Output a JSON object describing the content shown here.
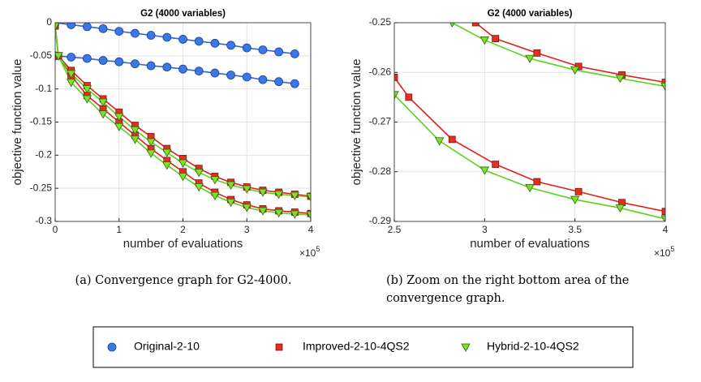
{
  "chart_data": [
    {
      "type": "line",
      "title": "G2 (4000 variables)",
      "x_label": "number of evaluations",
      "y_label": "objective function value",
      "x_multiplier": "×10",
      "x_exponent": "5",
      "caption": [
        "(a) Convergence graph for G2-4000."
      ],
      "xlim": [
        0,
        4
      ],
      "ylim": [
        -0.3,
        0
      ],
      "xticks": [
        0,
        1,
        2,
        3,
        4
      ],
      "yticks": [
        0,
        -0.05,
        -0.1,
        -0.15,
        -0.2,
        -0.25,
        -0.3
      ],
      "grid": true,
      "series": [
        {
          "name": "Original-2-10",
          "color": "#2f64d8",
          "marker": "circle",
          "marker_color": "#3a78e8",
          "x": [
            0,
            0.25,
            0.5,
            0.75,
            1,
            1.25,
            1.5,
            1.75,
            2,
            2.25,
            2.5,
            2.75,
            3,
            3.25,
            3.5,
            3.75
          ],
          "values": [
            0,
            -0.003,
            -0.006,
            -0.009,
            -0.013,
            -0.016,
            -0.019,
            -0.022,
            -0.025,
            -0.028,
            -0.031,
            -0.034,
            -0.038,
            -0.041,
            -0.044,
            -0.047
          ]
        },
        {
          "color": "#2f64d8",
          "marker": "circle",
          "marker_color": "#3a78e8",
          "x": [
            0,
            0.25,
            0.5,
            0.75,
            1,
            1.25,
            1.5,
            1.75,
            2,
            2.25,
            2.5,
            2.75,
            3,
            3.25,
            3.5,
            3.75
          ],
          "values": [
            -0.05,
            -0.052,
            -0.054,
            -0.057,
            -0.059,
            -0.062,
            -0.065,
            -0.067,
            -0.07,
            -0.073,
            -0.076,
            -0.079,
            -0.082,
            -0.086,
            -0.089,
            -0.092
          ]
        },
        {
          "name": "Improved-2-10-4QS2",
          "color": "#e01e1e",
          "marker": "square",
          "marker_color": "#e0301e",
          "x": [
            0,
            0.05,
            0.25,
            0.5,
            0.75,
            1,
            1.25,
            1.5,
            1.75,
            2,
            2.25,
            2.5,
            2.75,
            3,
            3.25,
            3.5,
            3.75,
            4
          ],
          "values": [
            -0.005,
            -0.05,
            -0.072,
            -0.095,
            -0.115,
            -0.135,
            -0.155,
            -0.172,
            -0.19,
            -0.205,
            -0.22,
            -0.232,
            -0.241,
            -0.248,
            -0.253,
            -0.256,
            -0.259,
            -0.262
          ]
        },
        {
          "color": "#e01e1e",
          "marker": "square",
          "marker_color": "#e0301e",
          "x": [
            0,
            0.05,
            0.25,
            0.5,
            0.75,
            1,
            1.25,
            1.5,
            1.75,
            2,
            2.25,
            2.5,
            2.75,
            3,
            3.25,
            3.5,
            3.75,
            4
          ],
          "values": [
            -0.005,
            -0.05,
            -0.08,
            -0.11,
            -0.13,
            -0.15,
            -0.17,
            -0.19,
            -0.208,
            -0.225,
            -0.242,
            -0.256,
            -0.267,
            -0.275,
            -0.281,
            -0.284,
            -0.286,
            -0.288
          ]
        },
        {
          "name": "Hybrid-2-10-4QS2",
          "color": "#5cd11c",
          "marker": "triangle",
          "marker_color": "#7ee02b",
          "x": [
            0,
            0.05,
            0.25,
            0.5,
            0.75,
            1,
            1.25,
            1.5,
            1.75,
            2,
            2.25,
            2.5,
            2.75,
            3,
            3.25,
            3.5,
            3.75,
            4
          ],
          "values": [
            -0.005,
            -0.05,
            -0.077,
            -0.1,
            -0.12,
            -0.142,
            -0.162,
            -0.18,
            -0.196,
            -0.212,
            -0.226,
            -0.237,
            -0.245,
            -0.251,
            -0.256,
            -0.259,
            -0.261,
            -0.263
          ]
        },
        {
          "color": "#5cd11c",
          "marker": "triangle",
          "marker_color": "#7ee02b",
          "x": [
            0,
            0.05,
            0.25,
            0.5,
            0.75,
            1,
            1.25,
            1.5,
            1.75,
            2,
            2.25,
            2.5,
            2.75,
            3,
            3.25,
            3.5,
            3.75,
            4
          ],
          "values": [
            -0.005,
            -0.05,
            -0.09,
            -0.115,
            -0.138,
            -0.157,
            -0.176,
            -0.197,
            -0.215,
            -0.232,
            -0.248,
            -0.261,
            -0.271,
            -0.279,
            -0.284,
            -0.287,
            -0.289,
            -0.29
          ]
        }
      ]
    },
    {
      "type": "line",
      "title": "G2 (4000 variables)",
      "x_label": "number of evaluations",
      "y_label": "objective function value",
      "x_multiplier": "×10",
      "x_exponent": "5",
      "caption": [
        "(b) Zoom on the right bottom area of the",
        "convergence graph."
      ],
      "xlim": [
        2.5,
        4
      ],
      "ylim": [
        -0.29,
        -0.25
      ],
      "xticks": [
        2.5,
        3,
        3.5,
        4
      ],
      "yticks": [
        -0.25,
        -0.26,
        -0.27,
        -0.28,
        -0.29
      ],
      "grid": true,
      "series": [
        {
          "color": "#e01e1e",
          "marker": "square",
          "marker_color": "#e0301e",
          "x": [
            2.95,
            3.06,
            3.29,
            3.52,
            3.76,
            4
          ],
          "values": [
            -0.25,
            -0.2532,
            -0.2561,
            -0.2588,
            -0.2605,
            -0.262
          ]
        },
        {
          "color": "#e01e1e",
          "marker": "square",
          "marker_color": "#e0301e",
          "x": [
            2.5,
            2.58,
            2.82,
            3.06,
            3.29,
            3.52,
            3.76,
            4
          ],
          "values": [
            -0.261,
            -0.265,
            -0.2735,
            -0.2785,
            -0.282,
            -0.284,
            -0.2862,
            -0.288
          ]
        },
        {
          "color": "#5cd11c",
          "marker": "triangle",
          "marker_color": "#7ee02b",
          "x": [
            2.82,
            3,
            3.25,
            3.5,
            3.75,
            4
          ],
          "values": [
            -0.25,
            -0.2535,
            -0.2572,
            -0.2595,
            -0.2612,
            -0.2628
          ]
        },
        {
          "color": "#5cd11c",
          "marker": "triangle",
          "marker_color": "#7ee02b",
          "x": [
            2.5,
            2.75,
            3,
            3.25,
            3.5,
            3.75,
            4
          ],
          "values": [
            -0.2645,
            -0.2738,
            -0.2797,
            -0.2832,
            -0.2856,
            -0.2873,
            -0.2895
          ]
        }
      ]
    }
  ]
}
